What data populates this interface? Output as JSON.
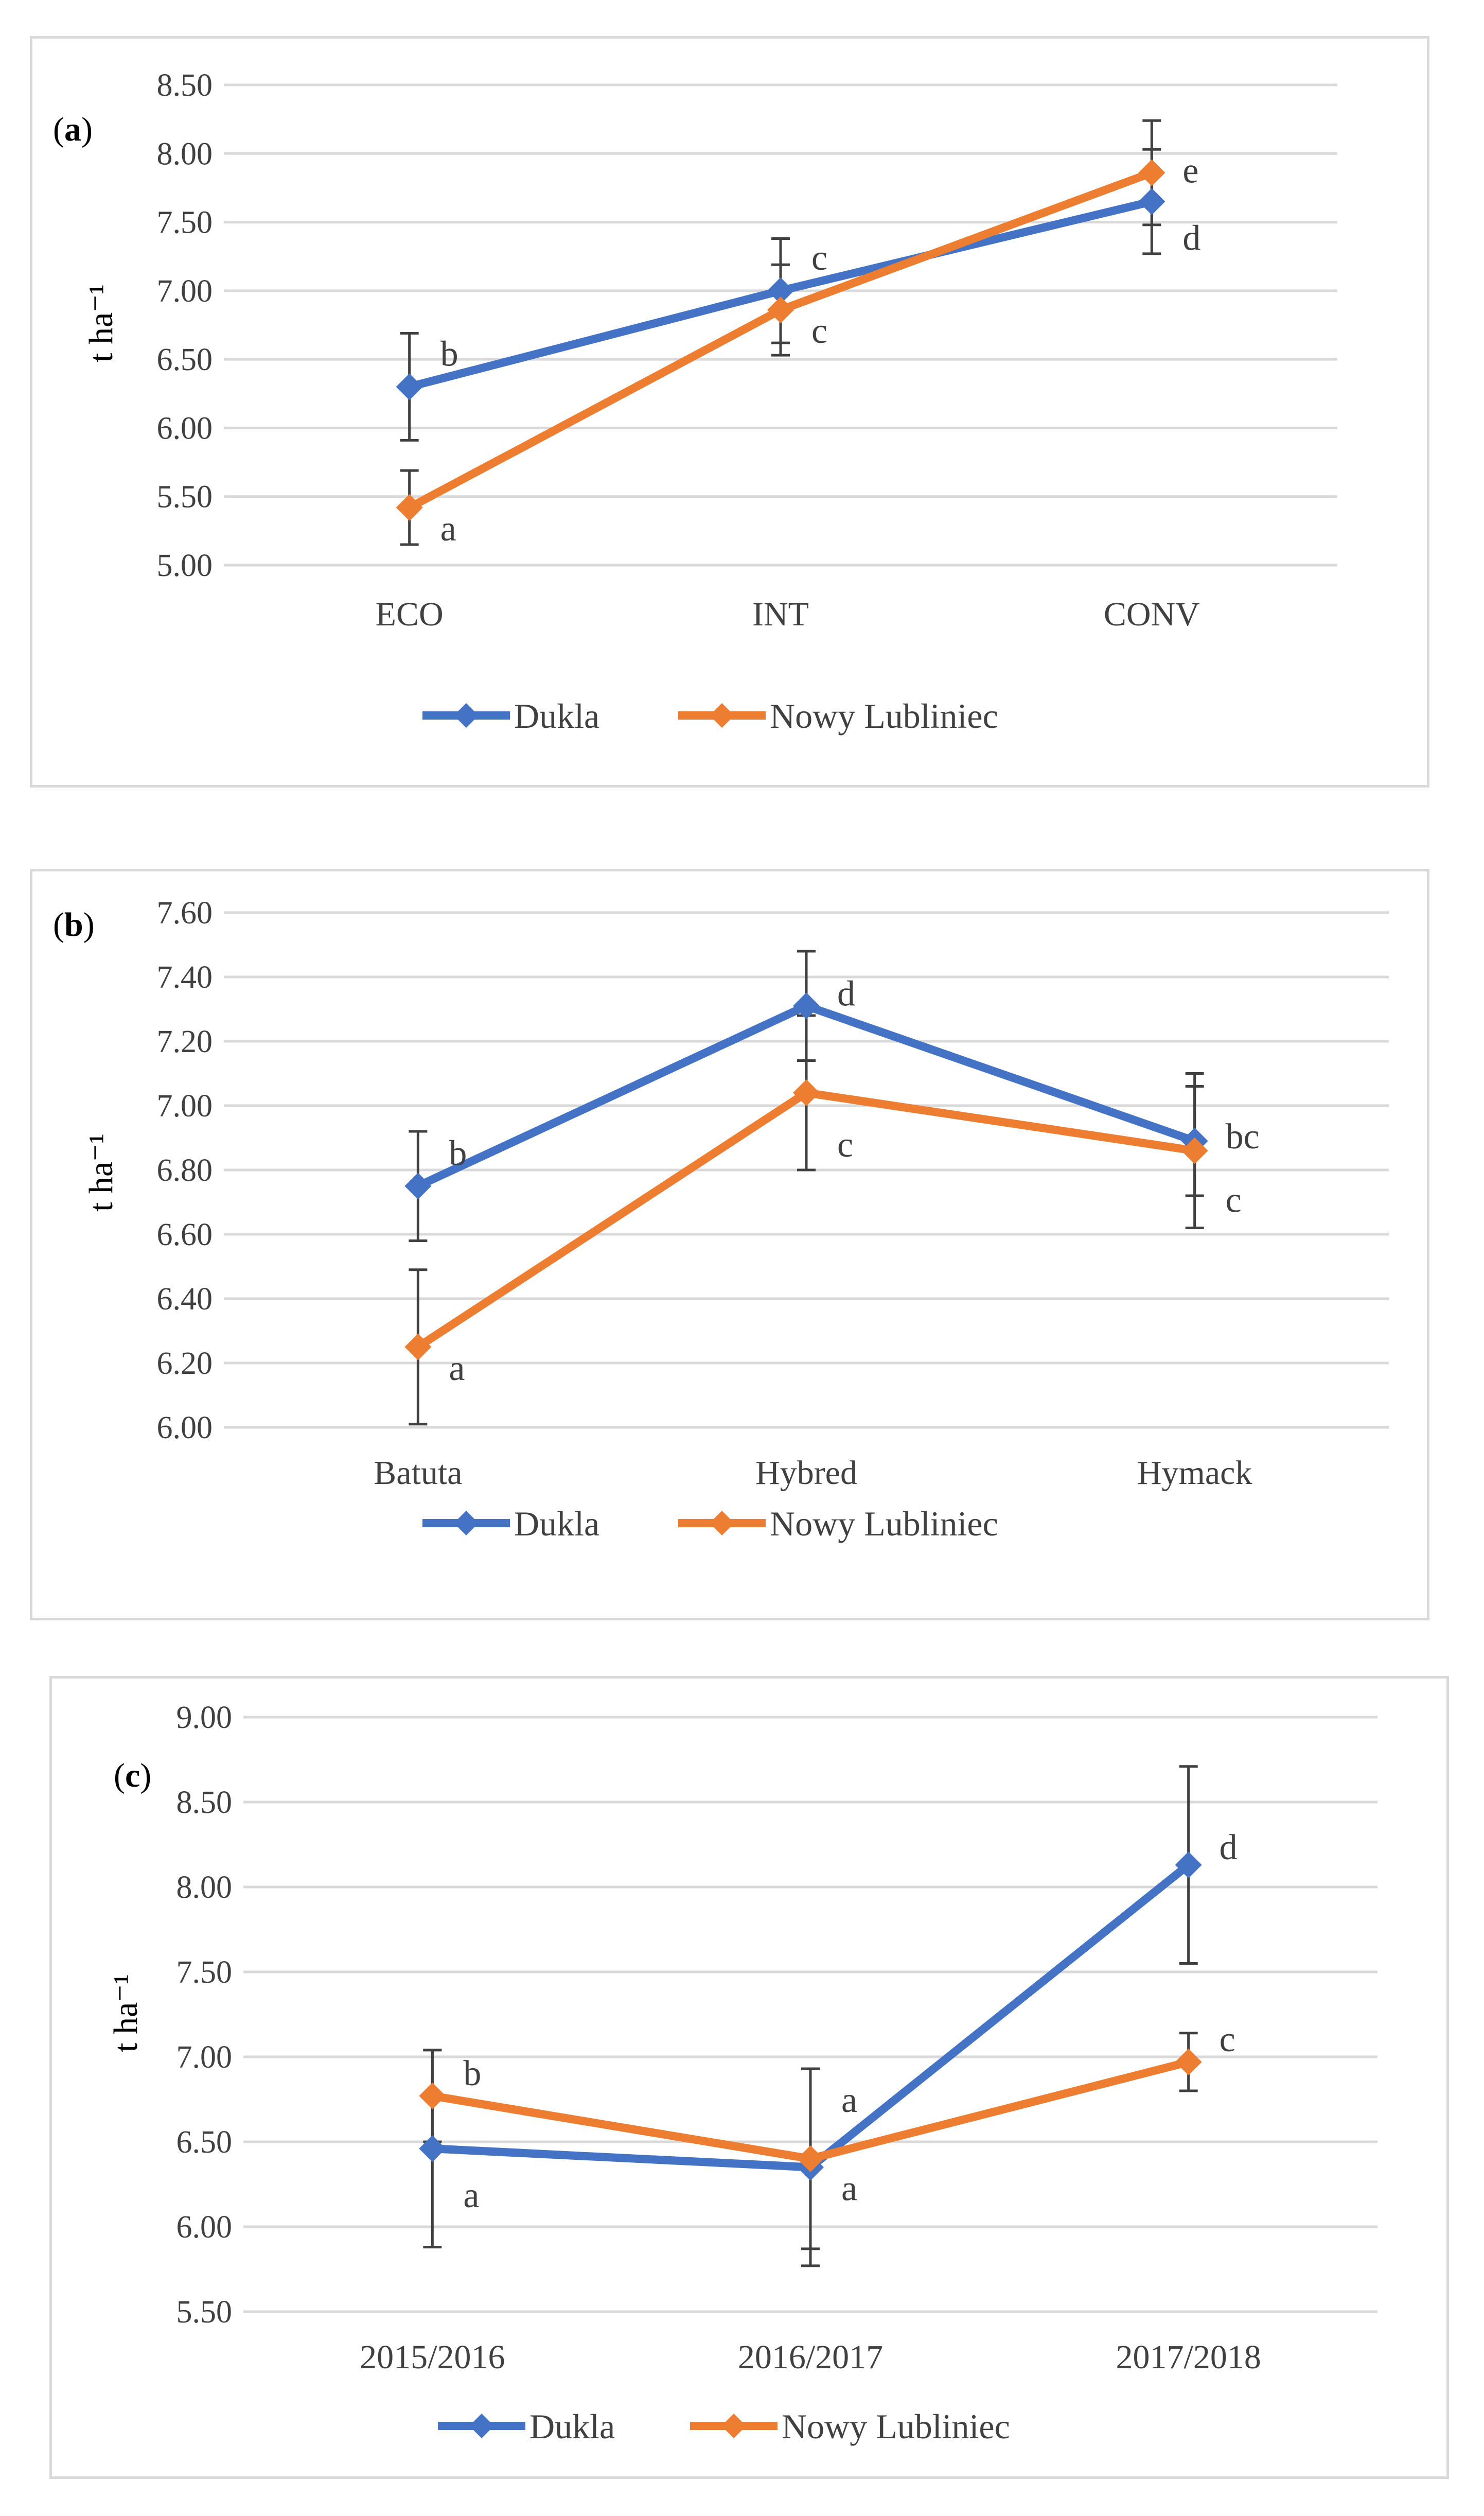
{
  "series_colors": {
    "Dukla": "#4472c4",
    "Nowy Lubliniec": "#ed7d31"
  },
  "chart_data": [
    {
      "type": "line",
      "panel_label": "(a)",
      "ylabel": "t ha⁻¹",
      "categories": [
        "ECO",
        "INT",
        "CONV"
      ],
      "ylim": [
        5.0,
        8.5
      ],
      "yticks": [
        5.0,
        5.5,
        6.0,
        6.5,
        7.0,
        7.5,
        8.0,
        8.5
      ],
      "ytick_labels": [
        "5.00",
        "5.50",
        "6.00",
        "6.50",
        "7.00",
        "7.50",
        "8.00",
        "8.50"
      ],
      "grid": true,
      "legend": "bottom",
      "series": [
        {
          "name": "Dukla",
          "values": [
            6.3,
            7.0,
            7.65
          ],
          "err": [
            0.39,
            0.38,
            0.38
          ],
          "letters": [
            "b",
            "c",
            "d"
          ]
        },
        {
          "name": "Nowy Lubliniec",
          "values": [
            5.42,
            6.86,
            7.86
          ],
          "err": [
            0.27,
            0.33,
            0.38
          ],
          "letters": [
            "a",
            "c",
            "e"
          ]
        }
      ]
    },
    {
      "type": "line",
      "panel_label": "(b)",
      "ylabel": "t ha⁻¹",
      "categories": [
        "Batuta",
        "Hybred",
        "Hymack"
      ],
      "ylim": [
        6.0,
        7.6
      ],
      "yticks": [
        6.0,
        6.2,
        6.4,
        6.6,
        6.8,
        7.0,
        7.2,
        7.4,
        7.6
      ],
      "ytick_labels": [
        "6.00",
        "6.20",
        "6.40",
        "6.60",
        "6.80",
        "7.00",
        "7.20",
        "7.40",
        "7.60"
      ],
      "grid": true,
      "legend": "bottom",
      "series": [
        {
          "name": "Dukla",
          "values": [
            6.75,
            7.31,
            6.89
          ],
          "err": [
            0.17,
            0.17,
            0.17
          ],
          "letters": [
            "b",
            "d",
            "bc"
          ]
        },
        {
          "name": "Nowy Lubliniec",
          "values": [
            6.25,
            7.04,
            6.86
          ],
          "err": [
            0.24,
            0.24,
            0.24
          ],
          "letters": [
            "a",
            "c",
            "c"
          ]
        }
      ]
    },
    {
      "type": "line",
      "panel_label": "(c)",
      "ylabel": "t ha⁻¹",
      "categories": [
        "2015/2016",
        "2016/2017",
        "2017/2018"
      ],
      "ylim": [
        5.5,
        9.0
      ],
      "yticks": [
        5.5,
        6.0,
        6.5,
        7.0,
        7.5,
        8.0,
        8.5,
        9.0
      ],
      "ytick_labels": [
        "5.50",
        "6.00",
        "6.50",
        "7.00",
        "7.50",
        "8.00",
        "8.50",
        "9.00"
      ],
      "grid": true,
      "legend": "bottom",
      "series": [
        {
          "name": "Dukla",
          "values": [
            6.46,
            6.35,
            8.13
          ],
          "err": [
            0.58,
            0.58,
            0.58
          ],
          "letters": [
            "a",
            "a",
            "d"
          ]
        },
        {
          "name": "Nowy Lubliniec",
          "values": [
            6.77,
            6.4,
            6.97
          ],
          "err": [
            0.27,
            0.53,
            0.17
          ],
          "letters": [
            "b",
            "a",
            "c"
          ]
        }
      ]
    }
  ]
}
